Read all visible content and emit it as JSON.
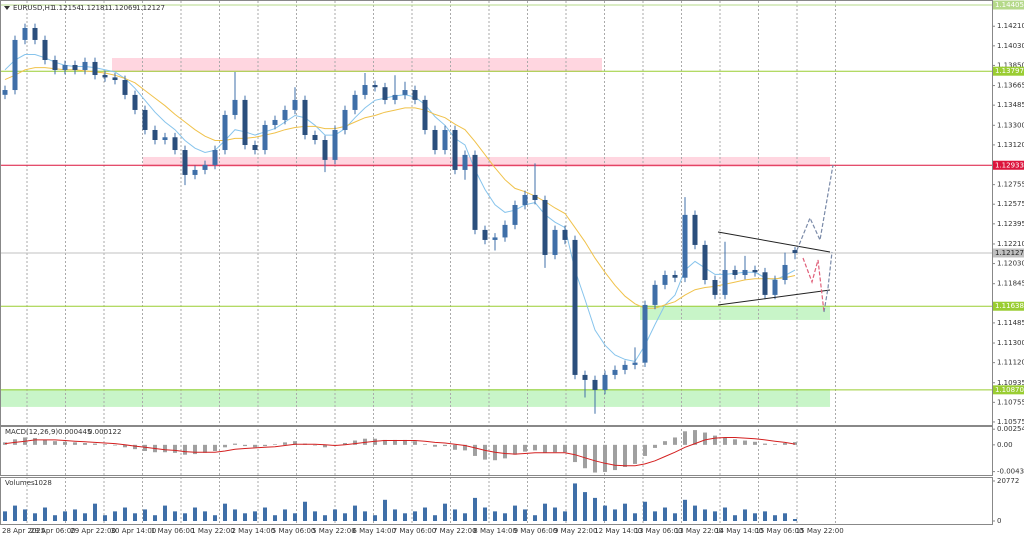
{
  "chart_data": {
    "type": "candlestick",
    "symbol": "EURUSD,H1",
    "candle_color": "#3f6fa8",
    "ylim": [
      1.10547,
      1.14451
    ],
    "yticks": [
      {
        "value": 1.1421,
        "label": "1.14210"
      },
      {
        "value": 1.1403,
        "label": "1.14030"
      },
      {
        "value": 1.1385,
        "label": "1.13850"
      },
      1.13665,
      1.13485,
      {
        "value": 1.133,
        "label": "1.13300"
      },
      {
        "value": 1.1312,
        "label": "1.13120"
      },
      1.12755,
      1.12575,
      1.12395,
      {
        "value": 1.1221,
        "label": "1.12210"
      },
      {
        "value": 1.1203,
        "label": "1.12030"
      },
      1.11845,
      1.11485,
      {
        "value": 1.113,
        "label": "1.11300"
      },
      {
        "value": 1.1112,
        "label": "1.11120"
      },
      1.10935,
      1.10755,
      1.10575
    ],
    "xlabels": [
      "28 Apr 2025",
      "29 Apr 06:00",
      "29 Apr 22:00",
      "30 Apr 14:00",
      "1 May 06:00",
      "1 May 22:00",
      "2 May 14:00",
      "5 May 06:00",
      "5 May 22:00",
      "6 May 14:00",
      "7 May 06:00",
      "7 May 22:00",
      "8 May 14:00",
      "9 May 06:00",
      "9 May 22:00",
      "12 May 14:00",
      "13 May 06:00",
      "13 May 22:00",
      "14 May 14:00",
      "15 May 06:00",
      "15 May 22:00"
    ],
    "levels": [
      {
        "value": 1.14405,
        "color": "#b5d98a"
      },
      {
        "value": 1.13797,
        "color": "#9acd32"
      },
      {
        "value": 1.12933,
        "color": "#dc143c"
      },
      {
        "value": 1.11638,
        "color": "#9acd32"
      },
      {
        "value": 1.1087,
        "label": "1.10870",
        "color": "#9acd32"
      }
    ],
    "current_color": "#c0c0c0",
    "zones": [
      {
        "from": 1.13918,
        "to": 1.1379,
        "color": "#ffd6e0"
      },
      {
        "from": 1.13009,
        "to": 1.12917,
        "color": "#ffd6e0"
      },
      {
        "from": 1.11641,
        "to": 1.11512,
        "color": "#c8f5c8"
      },
      {
        "from": 1.10878,
        "to": 1.10713,
        "color": "#c8f5c8"
      }
    ],
    "candles": [
      [
        1.1358,
        1.13664,
        1.1354,
        1.13624
      ],
      [
        1.13624,
        1.14124,
        1.13584,
        1.14084
      ],
      [
        1.14084,
        1.14234,
        1.14044,
        1.14194
      ],
      [
        1.14194,
        1.14234,
        1.14044,
        1.14084
      ],
      [
        1.14084,
        1.14124,
        1.1386,
        1.139
      ],
      [
        1.139,
        1.1394,
        1.13768,
        1.13808
      ],
      [
        1.13808,
        1.13894,
        1.13768,
        1.13854
      ],
      [
        1.13854,
        1.13894,
        1.13768,
        1.13808
      ],
      [
        1.13808,
        1.13922,
        1.13768,
        1.13882
      ],
      [
        1.13882,
        1.13922,
        1.13722,
        1.13762
      ],
      [
        1.13762,
        1.13802,
        1.137,
        1.1374
      ],
      [
        1.1374,
        1.1378,
        1.13676,
        1.13716
      ],
      [
        1.13716,
        1.13756,
        1.13539,
        1.13579
      ],
      [
        1.13579,
        1.13619,
        1.13401,
        1.13441
      ],
      [
        1.13441,
        1.13481,
        1.13217,
        1.13257
      ],
      [
        1.13257,
        1.13297,
        1.13125,
        1.13165
      ],
      [
        1.13165,
        1.1323,
        1.13125,
        1.1319
      ],
      [
        1.1319,
        1.1323,
        1.13033,
        1.13073
      ],
      [
        1.13073,
        1.13113,
        1.1275,
        1.12844
      ],
      [
        1.12844,
        1.1293,
        1.12804,
        1.1289
      ],
      [
        1.1289,
        1.12976,
        1.1285,
        1.12936
      ],
      [
        1.12936,
        1.13113,
        1.12896,
        1.13073
      ],
      [
        1.13073,
        1.13435,
        1.13033,
        1.13395
      ],
      [
        1.13395,
        1.1379,
        1.13355,
        1.13533
      ],
      [
        1.13533,
        1.13573,
        1.13079,
        1.13119
      ],
      [
        1.13119,
        1.13159,
        1.13033,
        1.13073
      ],
      [
        1.13073,
        1.13343,
        1.13033,
        1.13303
      ],
      [
        1.13303,
        1.13389,
        1.13263,
        1.13349
      ],
      [
        1.13349,
        1.13481,
        1.13309,
        1.13441
      ],
      [
        1.13441,
        1.1365,
        1.13401,
        1.13533
      ],
      [
        1.13533,
        1.13573,
        1.13171,
        1.13211
      ],
      [
        1.13211,
        1.13251,
        1.13125,
        1.13165
      ],
      [
        1.13165,
        1.13205,
        1.1287,
        1.12982
      ],
      [
        1.12982,
        1.13297,
        1.12942,
        1.13257
      ],
      [
        1.13257,
        1.13481,
        1.13217,
        1.13441
      ],
      [
        1.13441,
        1.13619,
        1.13401,
        1.13579
      ],
      [
        1.13579,
        1.1378,
        1.13539,
        1.1367
      ],
      [
        1.1367,
        1.1371,
        1.1361,
        1.1365
      ],
      [
        1.1365,
        1.1369,
        1.13493,
        1.13533
      ],
      [
        1.13533,
        1.1376,
        1.13493,
        1.13579
      ],
      [
        1.13579,
        1.137,
        1.13539,
        1.13624
      ],
      [
        1.13624,
        1.13664,
        1.13493,
        1.13533
      ],
      [
        1.13533,
        1.13573,
        1.13217,
        1.13257
      ],
      [
        1.13257,
        1.13297,
        1.13033,
        1.13073
      ],
      [
        1.13073,
        1.13297,
        1.13033,
        1.13257
      ],
      [
        1.13257,
        1.13297,
        1.1285,
        1.1289
      ],
      [
        1.1289,
        1.13068,
        1.128,
        1.13028
      ],
      [
        1.13028,
        1.13068,
        1.12299,
        1.12339
      ],
      [
        1.12339,
        1.12379,
        1.12207,
        1.12247
      ],
      [
        1.12247,
        1.1231,
        1.1215,
        1.1227
      ],
      [
        1.1227,
        1.12425,
        1.1223,
        1.12385
      ],
      [
        1.12385,
        1.12608,
        1.12345,
        1.12568
      ],
      [
        1.12568,
        1.127,
        1.12528,
        1.1266
      ],
      [
        1.1266,
        1.1295,
        1.12574,
        1.12614
      ],
      [
        1.12614,
        1.12654,
        1.1199,
        1.12109
      ],
      [
        1.12109,
        1.12379,
        1.12069,
        1.12339
      ],
      [
        1.12339,
        1.12379,
        1.12207,
        1.12247
      ],
      [
        1.12247,
        1.12287,
        1.10967,
        1.11007
      ],
      [
        1.11007,
        1.11047,
        1.108,
        1.10961
      ],
      [
        1.10961,
        1.11001,
        1.1065,
        1.10869
      ],
      [
        1.10869,
        1.11047,
        1.10829,
        1.11007
      ],
      [
        1.11007,
        1.11093,
        1.10967,
        1.11053
      ],
      [
        1.11053,
        1.11139,
        1.11013,
        1.11099
      ],
      [
        1.11099,
        1.1126,
        1.11059,
        1.1112
      ],
      [
        1.1112,
        1.1169,
        1.1108,
        1.1165
      ],
      [
        1.1165,
        1.11874,
        1.1161,
        1.11834
      ],
      [
        1.11834,
        1.11965,
        1.11794,
        1.11925
      ],
      [
        1.11925,
        1.11965,
        1.1186,
        1.119
      ],
      [
        1.119,
        1.1264,
        1.1186,
        1.12477
      ],
      [
        1.12477,
        1.12517,
        1.12161,
        1.12201
      ],
      [
        1.12201,
        1.12241,
        1.11839,
        1.11879
      ],
      [
        1.11879,
        1.11919,
        1.11702,
        1.11742
      ],
      [
        1.11742,
        1.1223,
        1.11702,
        1.11971
      ],
      [
        1.11971,
        1.12011,
        1.11885,
        1.11925
      ],
      [
        1.11925,
        1.121,
        1.11885,
        1.11971
      ],
      [
        1.11971,
        1.12011,
        1.1191,
        1.1195
      ],
      [
        1.1195,
        1.1199,
        1.11702,
        1.11742
      ],
      [
        1.11742,
        1.11919,
        1.11702,
        1.11879
      ],
      [
        1.11879,
        1.1213,
        1.11839,
        1.12017
      ],
      [
        1.12154,
        1.12181,
        1.12069,
        1.12127
      ]
    ],
    "moving_averages": [
      {
        "color": "#87c4ec",
        "values": [
          1.1381,
          1.139,
          1.1395,
          1.1395,
          1.1392,
          1.1388,
          1.1385,
          1.1384,
          1.1384,
          1.1383,
          1.1381,
          1.1379,
          1.1373,
          1.1364,
          1.1353,
          1.1342,
          1.1333,
          1.1326,
          1.1316,
          1.1309,
          1.1305,
          1.1307,
          1.1316,
          1.1326,
          1.1324,
          1.1321,
          1.1324,
          1.1327,
          1.1333,
          1.1339,
          1.1337,
          1.133,
          1.1321,
          1.1321,
          1.1327,
          1.1337,
          1.1346,
          1.1353,
          1.1355,
          1.1357,
          1.1358,
          1.1356,
          1.1349,
          1.1338,
          1.133,
          1.1318,
          1.1312,
          1.1289,
          1.1271,
          1.1257,
          1.125,
          1.1252,
          1.1257,
          1.1259,
          1.1248,
          1.1241,
          1.1236,
          1.1197,
          1.117,
          1.1142,
          1.1128,
          1.1119,
          1.1115,
          1.1113,
          1.1128,
          1.1147,
          1.1165,
          1.1174,
          1.1197,
          1.1205,
          1.1199,
          1.1193,
          1.1193,
          1.1194,
          1.1195,
          1.1195,
          1.119,
          1.1188,
          1.1192,
          1.1197
        ]
      },
      {
        "color": "#f0c24b",
        "values": [
          1.1372,
          1.1376,
          1.1381,
          1.1383,
          1.1383,
          1.1382,
          1.1381,
          1.1381,
          1.138,
          1.1379,
          1.1378,
          1.1376,
          1.1373,
          1.1369,
          1.1362,
          1.1355,
          1.1348,
          1.134,
          1.1333,
          1.1326,
          1.132,
          1.1316,
          1.1316,
          1.1318,
          1.1318,
          1.1319,
          1.1321,
          1.1323,
          1.1326,
          1.1328,
          1.1329,
          1.1329,
          1.1327,
          1.1327,
          1.1329,
          1.1333,
          1.1337,
          1.1339,
          1.1342,
          1.1344,
          1.1346,
          1.1346,
          1.1344,
          1.134,
          1.1337,
          1.1331,
          1.1326,
          1.1315,
          1.1303,
          1.1291,
          1.128,
          1.1272,
          1.1269,
          1.1265,
          1.126,
          1.1254,
          1.1249,
          1.1236,
          1.1223,
          1.1208,
          1.1195,
          1.1183,
          1.1173,
          1.1166,
          1.1162,
          1.1162,
          1.1165,
          1.1168,
          1.1174,
          1.1179,
          1.1181,
          1.1182,
          1.1184,
          1.1186,
          1.1188,
          1.1189,
          1.1189,
          1.1189,
          1.119,
          1.1192
        ]
      }
    ],
    "macd": {
      "title": "MACD(12,26,9)",
      "color": "#a0a0a0",
      "signal_color": "#d42020",
      "ylim": [
        -0.0049,
        0.0029
      ],
      "yticks": [
        0.002544,
        {
          "value": 0,
          "label": "0.00"
        },
        -0.00435
      ],
      "values": [
        0.0004,
        0.0009,
        0.0012,
        0.0011,
        0.0008,
        0.0006,
        0.0005,
        0.0004,
        0.0003,
        0.0002,
        0.0001,
        -0.0001,
        -0.0004,
        -0.0007,
        -0.001,
        -0.0012,
        -0.0012,
        -0.0013,
        -0.0016,
        -0.0015,
        -0.0013,
        -0.001,
        -0.0004,
        0.0002,
        -0.0002,
        -0.0004,
        -0.0002,
        0.0001,
        0.0004,
        0.0006,
        0.0002,
        -0.0001,
        -0.0004,
        -0.0001,
        0.0003,
        0.0007,
        0.001,
        0.001,
        0.0008,
        0.0008,
        0.0008,
        0.0006,
        0.0001,
        -0.0003,
        -0.0002,
        -0.0008,
        -0.0009,
        -0.0018,
        -0.0024,
        -0.0025,
        -0.0022,
        -0.0016,
        -0.0011,
        -0.0009,
        -0.0013,
        -0.0012,
        -0.0012,
        -0.0028,
        -0.0038,
        -0.0045,
        -0.0044,
        -0.0041,
        -0.0036,
        -0.0031,
        -0.0018,
        -0.0005,
        0.0006,
        0.0012,
        0.0022,
        0.0024,
        0.002,
        0.0015,
        0.0012,
        0.0009,
        0.0007,
        0.0005,
        0.0002,
        0.0001,
        0.0003,
        0.000445
      ],
      "signal": [
        0.0002,
        0.0004,
        0.0006,
        0.0008,
        0.0008,
        0.0008,
        0.0007,
        0.0006,
        0.0005,
        0.0004,
        0.0003,
        0.0002,
        0,
        -0.0002,
        -0.0004,
        -0.0006,
        -0.0008,
        -0.0009,
        -0.0011,
        -0.0012,
        -0.0012,
        -0.0012,
        -0.001,
        -0.0007,
        -0.0006,
        -0.0005,
        -0.0004,
        -0.0003,
        -0.0001,
        0.0001,
        0.0001,
        0.0001,
        0,
        -0.0001,
        0,
        0.0002,
        0.0004,
        0.0006,
        0.0007,
        0.0007,
        0.0007,
        0.0007,
        0.0006,
        0.0004,
        0.0003,
        0.0001,
        -0.0001,
        -0.0005,
        -0.0009,
        -0.0012,
        -0.0014,
        -0.0015,
        -0.0014,
        -0.0013,
        -0.0013,
        -0.0013,
        -0.0013,
        -0.0016,
        -0.0021,
        -0.0026,
        -0.003,
        -0.0033,
        -0.0034,
        -0.0034,
        -0.0031,
        -0.0026,
        -0.0019,
        -0.0012,
        -0.0004,
        0.0002,
        0.0008,
        0.0011,
        0.0012,
        0.0012,
        0.0011,
        0.001,
        0.0008,
        0.0006,
        0.0004,
        0.000122
      ]
    },
    "volumes": {
      "title": "Volumes",
      "color": "#3f6fa8",
      "ylim": [
        0,
        21800
      ],
      "yticks": [
        20772,
        0
      ],
      "values": [
        5000,
        8000,
        6000,
        4000,
        7000,
        3000,
        5000,
        6000,
        4000,
        9000,
        3000,
        5000,
        7000,
        4000,
        6000,
        3000,
        8000,
        5000,
        4000,
        7000,
        5000,
        3000,
        9000,
        6000,
        4000,
        5000,
        7000,
        3000,
        6000,
        4000,
        10000,
        5000,
        3000,
        6000,
        4000,
        8000,
        5000,
        3000,
        11000,
        6000,
        4000,
        5000,
        7000,
        3000,
        9000,
        6000,
        4000,
        12000,
        7000,
        5000,
        4000,
        8000,
        6000,
        3000,
        9000,
        7000,
        5000,
        19500,
        15000,
        12000,
        8000,
        6000,
        9000,
        4000,
        10000,
        5000,
        7000,
        4000,
        11000,
        8000,
        6000,
        5000,
        7000,
        3000,
        6000,
        4000,
        5000,
        3000,
        4000,
        1028
      ]
    }
  }
}
